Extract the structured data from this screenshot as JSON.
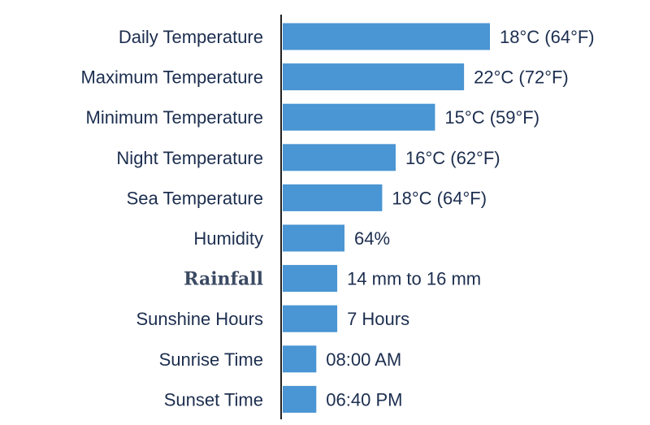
{
  "chart_data": {
    "type": "bar",
    "orientation": "horizontal",
    "categories": [
      "Daily Temperature",
      "Maximum Temperature",
      "Minimum Temperature",
      "Night Temperature",
      "Sea Temperature",
      "Humidity",
      "Rainfall",
      "Sunshine Hours",
      "Sunrise Time",
      "Sunset Time"
    ],
    "values": [
      18,
      22,
      15,
      16,
      18,
      64,
      15,
      7,
      8,
      6.67
    ],
    "value_labels": [
      "18°C (64°F)",
      "22°C (72°F)",
      "15°C (59°F)",
      "16°C (62°F)",
      "18°C (64°F)",
      "64%",
      "14 mm to 16 mm",
      "7 Hours",
      "08:00 AM",
      "06:40 PM"
    ],
    "bar_fraction": [
      1.0,
      0.875,
      0.735,
      0.545,
      0.48,
      0.298,
      0.263,
      0.263,
      0.162,
      0.162
    ],
    "bar_color": "#4a95d3",
    "label_color": "#1c2e4f",
    "grid": false,
    "legend": "none"
  }
}
